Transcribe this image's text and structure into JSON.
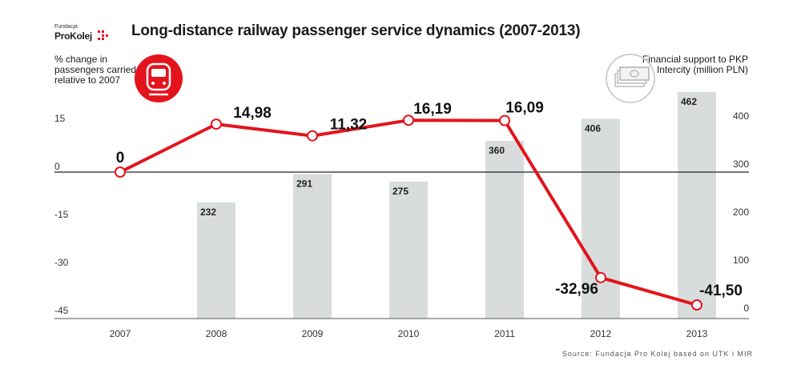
{
  "header": {
    "logo_small": "Fundacja",
    "logo_main": "ProKolej",
    "title": "Long-distance railway passenger service dynamics (2007-2013)"
  },
  "left_axis": {
    "title": "% change in passengers carried relative to 2007",
    "icon": "train-icon"
  },
  "right_axis": {
    "title": "Financial support to PKP Intercity (million PLN)",
    "icon": "money-stack-icon"
  },
  "footer": {
    "source": "Source: Fundacja Pro Kolej based on UTK i MIR"
  },
  "colors": {
    "line": "#e3141c",
    "bar": "#d9dcdd",
    "icon_circle_left": "#e3141c",
    "icon_circle_right": "#c8c8c8"
  },
  "chart_data": {
    "type": "bar+line",
    "title": "Long-distance railway passenger service dynamics (2007-2013)",
    "categories": [
      "2007",
      "2008",
      "2009",
      "2010",
      "2011",
      "2012",
      "2013"
    ],
    "line_series": {
      "name": "% change in passengers carried relative to 2007",
      "values": [
        0,
        14.98,
        11.32,
        16.19,
        16.09,
        -32.96,
        -41.5
      ],
      "labels": [
        "0",
        "14,98",
        "11,32",
        "16,19",
        "16,09",
        "-32,96",
        "-41,50"
      ],
      "axis": "left",
      "ylim": [
        -45,
        15
      ],
      "ticks": [
        "15",
        "0",
        "-15",
        "-30",
        "-45"
      ],
      "tick_values": [
        15,
        0,
        -15,
        -30,
        -45
      ]
    },
    "bar_series": {
      "name": "Financial support to PKP Intercity (million PLN)",
      "values": [
        null,
        232,
        291,
        275,
        360,
        406,
        462
      ],
      "labels": [
        "",
        "232",
        "291",
        "275",
        "360",
        "406",
        "462"
      ],
      "axis": "right",
      "ylim": [
        0,
        400
      ],
      "ticks": [
        "400",
        "300",
        "200",
        "100",
        "0"
      ],
      "tick_values": [
        400,
        300,
        200,
        100,
        0
      ]
    },
    "legend": "none",
    "grid": false
  }
}
